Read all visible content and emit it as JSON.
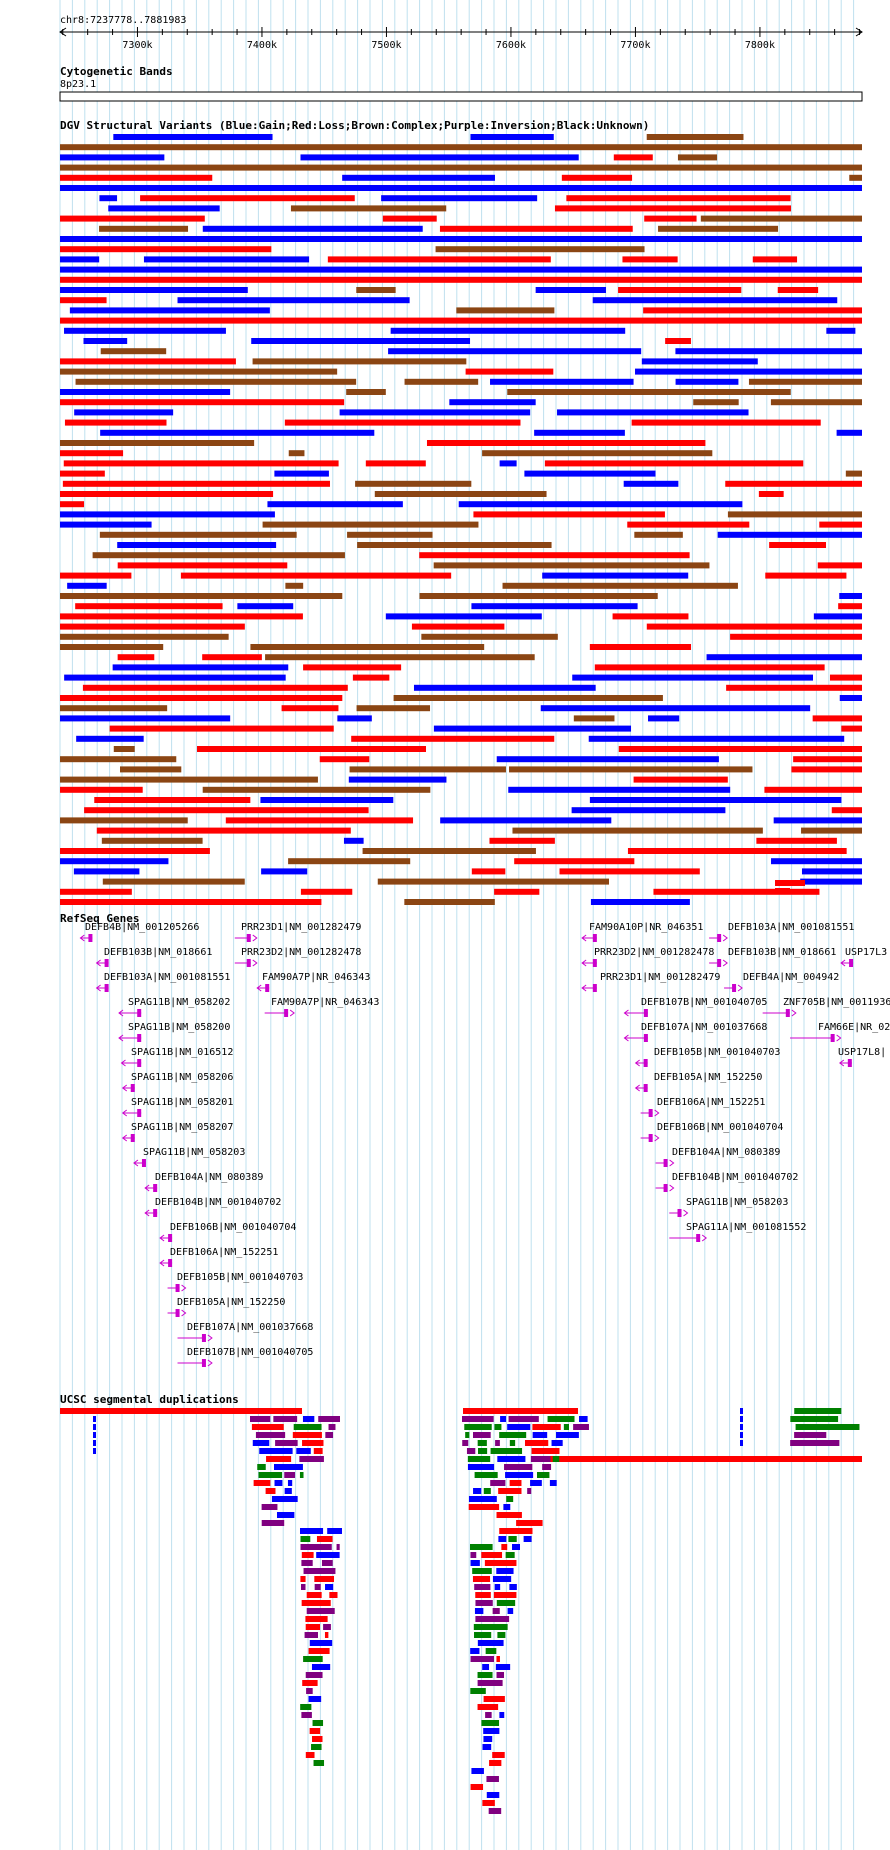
{
  "browser": {
    "position": "chr8:7237778..7881983",
    "ruler": {
      "start": 7237778,
      "end": 7881983,
      "ticks": [
        7300000,
        7400000,
        7500000,
        7600000,
        7700000,
        7800000
      ],
      "tick_labels": [
        "7300k",
        "7400k",
        "7500k",
        "7600k",
        "7700k",
        "7800k"
      ]
    }
  },
  "colors": {
    "grid": "#bfe0ef",
    "gain": "#0000ff",
    "loss": "#ff0000",
    "complex": "#8b4513",
    "inversion": "#800080",
    "unknown": "#000000",
    "gene": "#cc00cc",
    "segdup_green": "#008000"
  },
  "tracks": {
    "cytoband": {
      "title": "Cytogenetic Bands",
      "band": "8p23.1"
    },
    "dgv": {
      "title": "DGV Structural Variants (Blue:Gain;Red:Loss;Brown:Complex;Purple:Inversion;Black:Unknown)"
    },
    "refseq": {
      "title": "RefSeq Genes",
      "genes": [
        {
          "label": "DEFB4B|NM_001205266",
          "start": 7259000,
          "end": 7261000,
          "strand": "-"
        },
        {
          "label": "DEFB103B|NM_018661",
          "start": 7272000,
          "end": 7273500,
          "strand": "-"
        },
        {
          "label": "DEFB103A|NM_001081551",
          "start": 7272000,
          "end": 7273500,
          "strand": "-"
        },
        {
          "label": "SPAG11B|NM_058202",
          "start": 7290000,
          "end": 7303000,
          "strand": "-"
        },
        {
          "label": "SPAG11B|NM_058200",
          "start": 7290000,
          "end": 7303000,
          "strand": "-"
        },
        {
          "label": "SPAG11B|NM_016512",
          "start": 7292000,
          "end": 7303000,
          "strand": "-"
        },
        {
          "label": "SPAG11B|NM_058206",
          "start": 7293000,
          "end": 7297000,
          "strand": "-"
        },
        {
          "label": "SPAG11B|NM_058201",
          "start": 7293000,
          "end": 7303000,
          "strand": "-"
        },
        {
          "label": "SPAG11B|NM_058207",
          "start": 7293000,
          "end": 7297000,
          "strand": "-"
        },
        {
          "label": "SPAG11B|NM_058203",
          "start": 7302000,
          "end": 7306000,
          "strand": "-"
        },
        {
          "label": "DEFB104A|NM_080389",
          "start": 7311000,
          "end": 7315000,
          "strand": "-"
        },
        {
          "label": "DEFB104B|NM_001040702",
          "start": 7311000,
          "end": 7315000,
          "strand": "-"
        },
        {
          "label": "DEFB106B|NM_001040704",
          "start": 7323000,
          "end": 7327000,
          "strand": "-"
        },
        {
          "label": "DEFB106A|NM_152251",
          "start": 7323000,
          "end": 7327000,
          "strand": "-"
        },
        {
          "label": "DEFB105B|NM_001040703",
          "start": 7329000,
          "end": 7331500,
          "strand": "+"
        },
        {
          "label": "DEFB105A|NM_152250",
          "start": 7329000,
          "end": 7331500,
          "strand": "+"
        },
        {
          "label": "DEFB107A|NM_001037668",
          "start": 7337000,
          "end": 7355000,
          "strand": "+"
        },
        {
          "label": "DEFB107B|NM_001040705",
          "start": 7337000,
          "end": 7355000,
          "strand": "+"
        },
        {
          "label": "PRR23D1|NM_001282479",
          "start": 7383000,
          "end": 7391000,
          "strand": "+"
        },
        {
          "label": "PRR23D2|NM_001282478",
          "start": 7383000,
          "end": 7391000,
          "strand": "+"
        },
        {
          "label": "FAM90A7P|NR_046343",
          "start": 7401000,
          "end": 7405000,
          "strand": "-"
        },
        {
          "label": "FAM90A7P|NR_046343",
          "start": 7407000,
          "end": 7421000,
          "strand": "+"
        },
        {
          "label": "FAM90A10P|NR_046351",
          "start": 7662000,
          "end": 7669000,
          "strand": "-"
        },
        {
          "label": "PRR23D2|NM_001282478",
          "start": 7662000,
          "end": 7669000,
          "strand": "-"
        },
        {
          "label": "PRR23D1|NM_001282479",
          "start": 7662000,
          "end": 7669000,
          "strand": "-"
        },
        {
          "label": "DEFB107B|NM_001040705",
          "start": 7696000,
          "end": 7710000,
          "strand": "-"
        },
        {
          "label": "DEFB107A|NM_001037668",
          "start": 7696000,
          "end": 7710000,
          "strand": "-"
        },
        {
          "label": "DEFB105B|NM_001040703",
          "start": 7705000,
          "end": 7708000,
          "strand": "-"
        },
        {
          "label": "DEFB105A|NM_152250",
          "start": 7705000,
          "end": 7708000,
          "strand": "-"
        },
        {
          "label": "DEFB106A|NM_152251",
          "start": 7709000,
          "end": 7713000,
          "strand": "+"
        },
        {
          "label": "DEFB106B|NM_001040704",
          "start": 7709000,
          "end": 7713000,
          "strand": "+"
        },
        {
          "label": "DEFB104A|NM_080389",
          "start": 7721000,
          "end": 7724000,
          "strand": "+"
        },
        {
          "label": "DEFB104B|NM_001040702",
          "start": 7721000,
          "end": 7724000,
          "strand": "+"
        },
        {
          "label": "SPAG11B|NM_058203",
          "start": 7732000,
          "end": 7737000,
          "strand": "+"
        },
        {
          "label": "SPAG11A|NM_001081552",
          "start": 7732000,
          "end": 7752000,
          "strand": "+"
        },
        {
          "label": "DEFB103A|NM_001081551",
          "start": 7764000,
          "end": 7766000,
          "strand": "+"
        },
        {
          "label": "DEFB103B|NM_018661",
          "start": 7764000,
          "end": 7766000,
          "strand": "+"
        },
        {
          "label": "DEFB4A|NM_004942",
          "start": 7776000,
          "end": 7778000,
          "strand": "+"
        },
        {
          "label": "ZNF705B|NM_0011936",
          "start": 7807000,
          "end": 7824000,
          "strand": "+"
        },
        {
          "label": "FAM66E|NR_02",
          "start": 7829000,
          "end": 7860000,
          "strand": "+"
        },
        {
          "label": "USP17L3",
          "start": 7870000,
          "end": 7873000,
          "strand": "-"
        },
        {
          "label": "USP17L8|",
          "start": 7869000,
          "end": 7872000,
          "strand": "-"
        }
      ]
    },
    "segdup": {
      "title": "UCSC segmental duplications"
    }
  }
}
